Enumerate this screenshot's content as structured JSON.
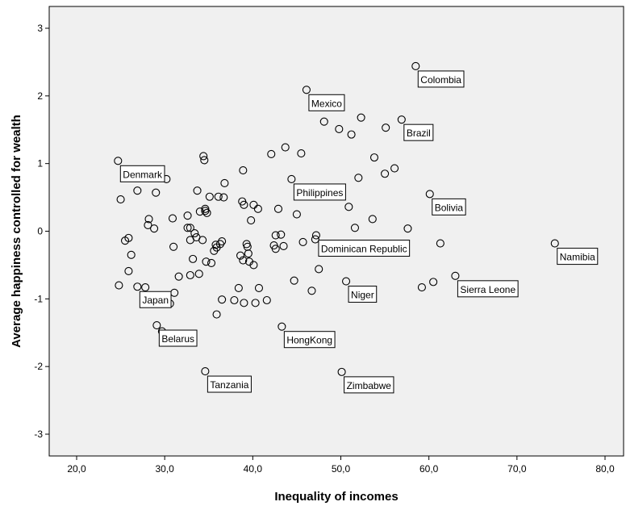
{
  "chart_data": {
    "type": "scatter",
    "title": "",
    "xlabel": "Inequality of incomes",
    "ylabel": "Average happiness controlled for wealth",
    "xlim": [
      17,
      80.5
    ],
    "ylim": [
      -3.35,
      3.35
    ],
    "x_ticks": [
      20,
      30,
      40,
      50,
      60,
      70,
      80
    ],
    "x_tick_labels": [
      "20,0",
      "30,0",
      "40,0",
      "50,0",
      "60,0",
      "70,0",
      "80,0"
    ],
    "y_ticks": [
      -3,
      -2,
      -1,
      0,
      1,
      2,
      3
    ],
    "y_tick_labels": [
      "-3",
      "-2",
      "-1",
      "0",
      "1",
      "2",
      "3"
    ],
    "grid": false,
    "background": "#f0f0f0",
    "marker_color": "#000000",
    "points": [
      {
        "x": 24.7,
        "y": 1.04
      },
      {
        "x": 24.8,
        "y": -0.8
      },
      {
        "x": 25.0,
        "y": 0.47
      },
      {
        "x": 25.5,
        "y": -0.14
      },
      {
        "x": 25.9,
        "y": -0.1
      },
      {
        "x": 25.9,
        "y": -0.59
      },
      {
        "x": 26.2,
        "y": -0.35
      },
      {
        "x": 26.9,
        "y": 0.6
      },
      {
        "x": 26.9,
        "y": -0.82
      },
      {
        "x": 27.8,
        "y": -0.83
      },
      {
        "x": 28.2,
        "y": 0.18
      },
      {
        "x": 28.1,
        "y": 0.09
      },
      {
        "x": 28.8,
        "y": 0.04
      },
      {
        "x": 29.0,
        "y": 0.57
      },
      {
        "x": 29.1,
        "y": -1.39
      },
      {
        "x": 29.7,
        "y": -1.48
      },
      {
        "x": 30.0,
        "y": -0.95
      },
      {
        "x": 30.2,
        "y": 0.77
      },
      {
        "x": 30.6,
        "y": -1.07
      },
      {
        "x": 30.9,
        "y": 0.19
      },
      {
        "x": 31.0,
        "y": -0.23
      },
      {
        "x": 31.1,
        "y": -0.91
      },
      {
        "x": 31.6,
        "y": -0.67
      },
      {
        "x": 32.6,
        "y": 0.23
      },
      {
        "x": 32.6,
        "y": 0.05
      },
      {
        "x": 32.9,
        "y": -0.13
      },
      {
        "x": 32.9,
        "y": 0.05
      },
      {
        "x": 32.9,
        "y": -0.65
      },
      {
        "x": 33.2,
        "y": -0.41
      },
      {
        "x": 33.4,
        "y": -0.03
      },
      {
        "x": 33.6,
        "y": -0.09
      },
      {
        "x": 33.7,
        "y": 0.6
      },
      {
        "x": 33.9,
        "y": -0.63
      },
      {
        "x": 34.0,
        "y": 0.29
      },
      {
        "x": 34.3,
        "y": -0.13
      },
      {
        "x": 34.4,
        "y": 1.11
      },
      {
        "x": 34.5,
        "y": 1.05
      },
      {
        "x": 34.6,
        "y": 0.33
      },
      {
        "x": 34.6,
        "y": 0.3
      },
      {
        "x": 34.6,
        "y": -2.07
      },
      {
        "x": 34.8,
        "y": 0.27
      },
      {
        "x": 34.7,
        "y": -0.45
      },
      {
        "x": 35.1,
        "y": 0.51
      },
      {
        "x": 35.3,
        "y": -0.47
      },
      {
        "x": 35.6,
        "y": -0.29
      },
      {
        "x": 35.8,
        "y": -0.2
      },
      {
        "x": 35.9,
        "y": -0.24
      },
      {
        "x": 35.9,
        "y": -1.23
      },
      {
        "x": 36.1,
        "y": 0.51
      },
      {
        "x": 36.3,
        "y": -0.19
      },
      {
        "x": 36.5,
        "y": -0.15
      },
      {
        "x": 36.5,
        "y": -1.01
      },
      {
        "x": 36.7,
        "y": 0.5
      },
      {
        "x": 36.8,
        "y": 0.71
      },
      {
        "x": 37.9,
        "y": -1.02
      },
      {
        "x": 38.4,
        "y": -0.84
      },
      {
        "x": 38.6,
        "y": -0.36
      },
      {
        "x": 38.9,
        "y": 0.9
      },
      {
        "x": 38.8,
        "y": 0.44
      },
      {
        "x": 39.0,
        "y": 0.39
      },
      {
        "x": 38.9,
        "y": -0.43
      },
      {
        "x": 39.0,
        "y": -1.06
      },
      {
        "x": 39.3,
        "y": -0.19
      },
      {
        "x": 39.4,
        "y": -0.23
      },
      {
        "x": 39.5,
        "y": -0.33
      },
      {
        "x": 39.6,
        "y": -0.45
      },
      {
        "x": 39.8,
        "y": 0.16
      },
      {
        "x": 40.1,
        "y": 0.39
      },
      {
        "x": 40.1,
        "y": -0.5
      },
      {
        "x": 40.3,
        "y": -1.06
      },
      {
        "x": 40.6,
        "y": 0.33
      },
      {
        "x": 40.7,
        "y": -0.84
      },
      {
        "x": 41.6,
        "y": -1.02
      },
      {
        "x": 42.1,
        "y": 1.14
      },
      {
        "x": 42.4,
        "y": -0.21
      },
      {
        "x": 42.6,
        "y": -0.06
      },
      {
        "x": 42.6,
        "y": -0.26
      },
      {
        "x": 42.9,
        "y": 0.33
      },
      {
        "x": 43.2,
        "y": -0.05
      },
      {
        "x": 43.3,
        "y": -1.41
      },
      {
        "x": 43.5,
        "y": -0.22
      },
      {
        "x": 43.7,
        "y": 1.24
      },
      {
        "x": 44.4,
        "y": 0.77
      },
      {
        "x": 44.7,
        "y": -0.73
      },
      {
        "x": 45.0,
        "y": 0.25
      },
      {
        "x": 45.5,
        "y": 1.15
      },
      {
        "x": 45.7,
        "y": -0.16
      },
      {
        "x": 46.1,
        "y": 2.09
      },
      {
        "x": 46.7,
        "y": -0.88
      },
      {
        "x": 47.1,
        "y": -0.12
      },
      {
        "x": 47.2,
        "y": -0.06
      },
      {
        "x": 47.5,
        "y": -0.56
      },
      {
        "x": 48.1,
        "y": 1.62
      },
      {
        "x": 49.8,
        "y": 1.51
      },
      {
        "x": 50.1,
        "y": -2.08
      },
      {
        "x": 50.6,
        "y": -0.74
      },
      {
        "x": 50.9,
        "y": 0.36
      },
      {
        "x": 51.2,
        "y": 1.43
      },
      {
        "x": 51.6,
        "y": 0.05
      },
      {
        "x": 52.0,
        "y": 0.79
      },
      {
        "x": 52.3,
        "y": 1.68
      },
      {
        "x": 53.6,
        "y": 0.18
      },
      {
        "x": 53.8,
        "y": 1.09
      },
      {
        "x": 55.0,
        "y": 0.85
      },
      {
        "x": 55.1,
        "y": 1.53
      },
      {
        "x": 56.1,
        "y": 0.93
      },
      {
        "x": 56.9,
        "y": 1.65
      },
      {
        "x": 57.6,
        "y": 0.04
      },
      {
        "x": 58.5,
        "y": 2.44
      },
      {
        "x": 59.2,
        "y": -0.83
      },
      {
        "x": 60.1,
        "y": 0.55
      },
      {
        "x": 60.5,
        "y": -0.75
      },
      {
        "x": 61.3,
        "y": -0.18
      },
      {
        "x": 63.0,
        "y": -0.66
      },
      {
        "x": 74.3,
        "y": -0.18
      }
    ],
    "annotations": [
      {
        "text": "Colombia",
        "x": 58.5,
        "y": 2.44
      },
      {
        "text": "Mexico",
        "x": 46.1,
        "y": 2.09
      },
      {
        "text": "Brazil",
        "x": 56.9,
        "y": 1.65
      },
      {
        "text": "Denmark",
        "x": 24.7,
        "y": 1.04
      },
      {
        "text": "Philippines",
        "x": 44.4,
        "y": 0.77
      },
      {
        "text": "Bolivia",
        "x": 60.1,
        "y": 0.55
      },
      {
        "text": "Dominican Republic",
        "x": 47.2,
        "y": -0.06
      },
      {
        "text": "Namibia",
        "x": 74.3,
        "y": -0.18
      },
      {
        "text": "Sierra Leone",
        "x": 63.0,
        "y": -0.66
      },
      {
        "text": "Niger",
        "x": 50.6,
        "y": -0.74
      },
      {
        "text": "Japan",
        "x": 26.9,
        "y": -0.82
      },
      {
        "text": "HongKong",
        "x": 43.3,
        "y": -1.41
      },
      {
        "text": "Belarus",
        "x": 29.1,
        "y": -1.39
      },
      {
        "text": "Tanzania",
        "x": 34.6,
        "y": -2.07
      },
      {
        "text": "Zimbabwe",
        "x": 50.1,
        "y": -2.08
      }
    ]
  }
}
